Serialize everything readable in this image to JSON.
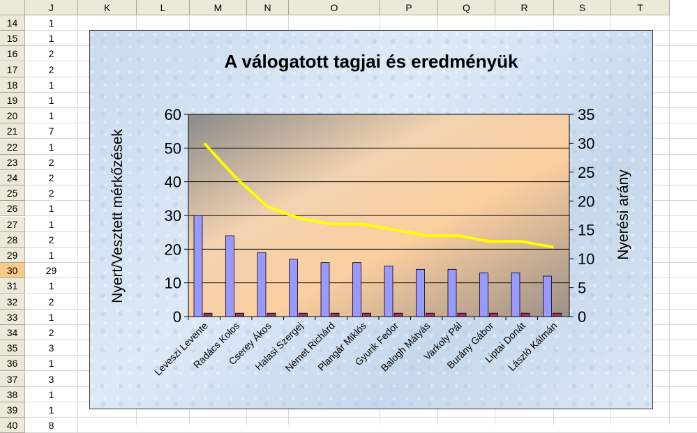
{
  "spreadsheet": {
    "columns": [
      "J",
      "K",
      "L",
      "M",
      "N",
      "O",
      "P",
      "Q",
      "R",
      "S",
      "T"
    ],
    "active_row": "30",
    "rows": [
      {
        "num": "14",
        "j": "1"
      },
      {
        "num": "15",
        "j": "1"
      },
      {
        "num": "16",
        "j": "2"
      },
      {
        "num": "17",
        "j": "2"
      },
      {
        "num": "18",
        "j": "1"
      },
      {
        "num": "19",
        "j": "1"
      },
      {
        "num": "20",
        "j": "1"
      },
      {
        "num": "21",
        "j": "7"
      },
      {
        "num": "22",
        "j": "1"
      },
      {
        "num": "23",
        "j": "2"
      },
      {
        "num": "24",
        "j": "2"
      },
      {
        "num": "25",
        "j": "2"
      },
      {
        "num": "26",
        "j": "1"
      },
      {
        "num": "27",
        "j": "1"
      },
      {
        "num": "28",
        "j": "2"
      },
      {
        "num": "29",
        "j": "1"
      },
      {
        "num": "30",
        "j": "29"
      },
      {
        "num": "31",
        "j": "1"
      },
      {
        "num": "32",
        "j": "2"
      },
      {
        "num": "33",
        "j": "1"
      },
      {
        "num": "34",
        "j": "2"
      },
      {
        "num": "35",
        "j": "3"
      },
      {
        "num": "36",
        "j": "1"
      },
      {
        "num": "37",
        "j": "3"
      },
      {
        "num": "38",
        "j": "1"
      },
      {
        "num": "39",
        "j": "1"
      },
      {
        "num": "40",
        "j": "8"
      }
    ]
  },
  "chart_data": {
    "type": "bar",
    "title": "A válogatott tagjai és eredményük",
    "ylabel": "Nyert/Vesztett mérkőzések",
    "y2label": "Nyerési arány",
    "ylim": [
      0,
      60
    ],
    "y2lim": [
      0,
      35
    ],
    "yticks": [
      "0",
      "10",
      "20",
      "30",
      "40",
      "50",
      "60"
    ],
    "y2ticks": [
      "0",
      "5",
      "10",
      "15",
      "20",
      "25",
      "30",
      "35"
    ],
    "categories": [
      "Leveszi Levente",
      "Radács Kolos",
      "Cserey Ákos",
      "Halasi Szergej",
      "Német Richárd",
      "Plangár Miklós",
      "Gyurik Fedor",
      "Balogh Mátyás",
      "Varkoly Pál",
      "Burány Gábor",
      "Liptai Donát",
      "László Kálmán"
    ],
    "series": [
      {
        "axis": "left",
        "kind": "bar",
        "color": "#9999ff",
        "values": [
          30,
          24,
          19,
          17,
          16,
          16,
          15,
          14,
          14,
          13,
          13,
          12
        ]
      },
      {
        "axis": "left",
        "kind": "bar",
        "color": "#993366",
        "values": [
          1,
          1,
          1,
          1,
          1,
          1,
          1,
          1,
          1,
          1,
          1,
          1
        ]
      },
      {
        "axis": "right",
        "kind": "line",
        "color": "#ffff00",
        "values": [
          30,
          24,
          19,
          17,
          16,
          16,
          15,
          14,
          14,
          13,
          13,
          12
        ]
      }
    ],
    "grid": true
  }
}
